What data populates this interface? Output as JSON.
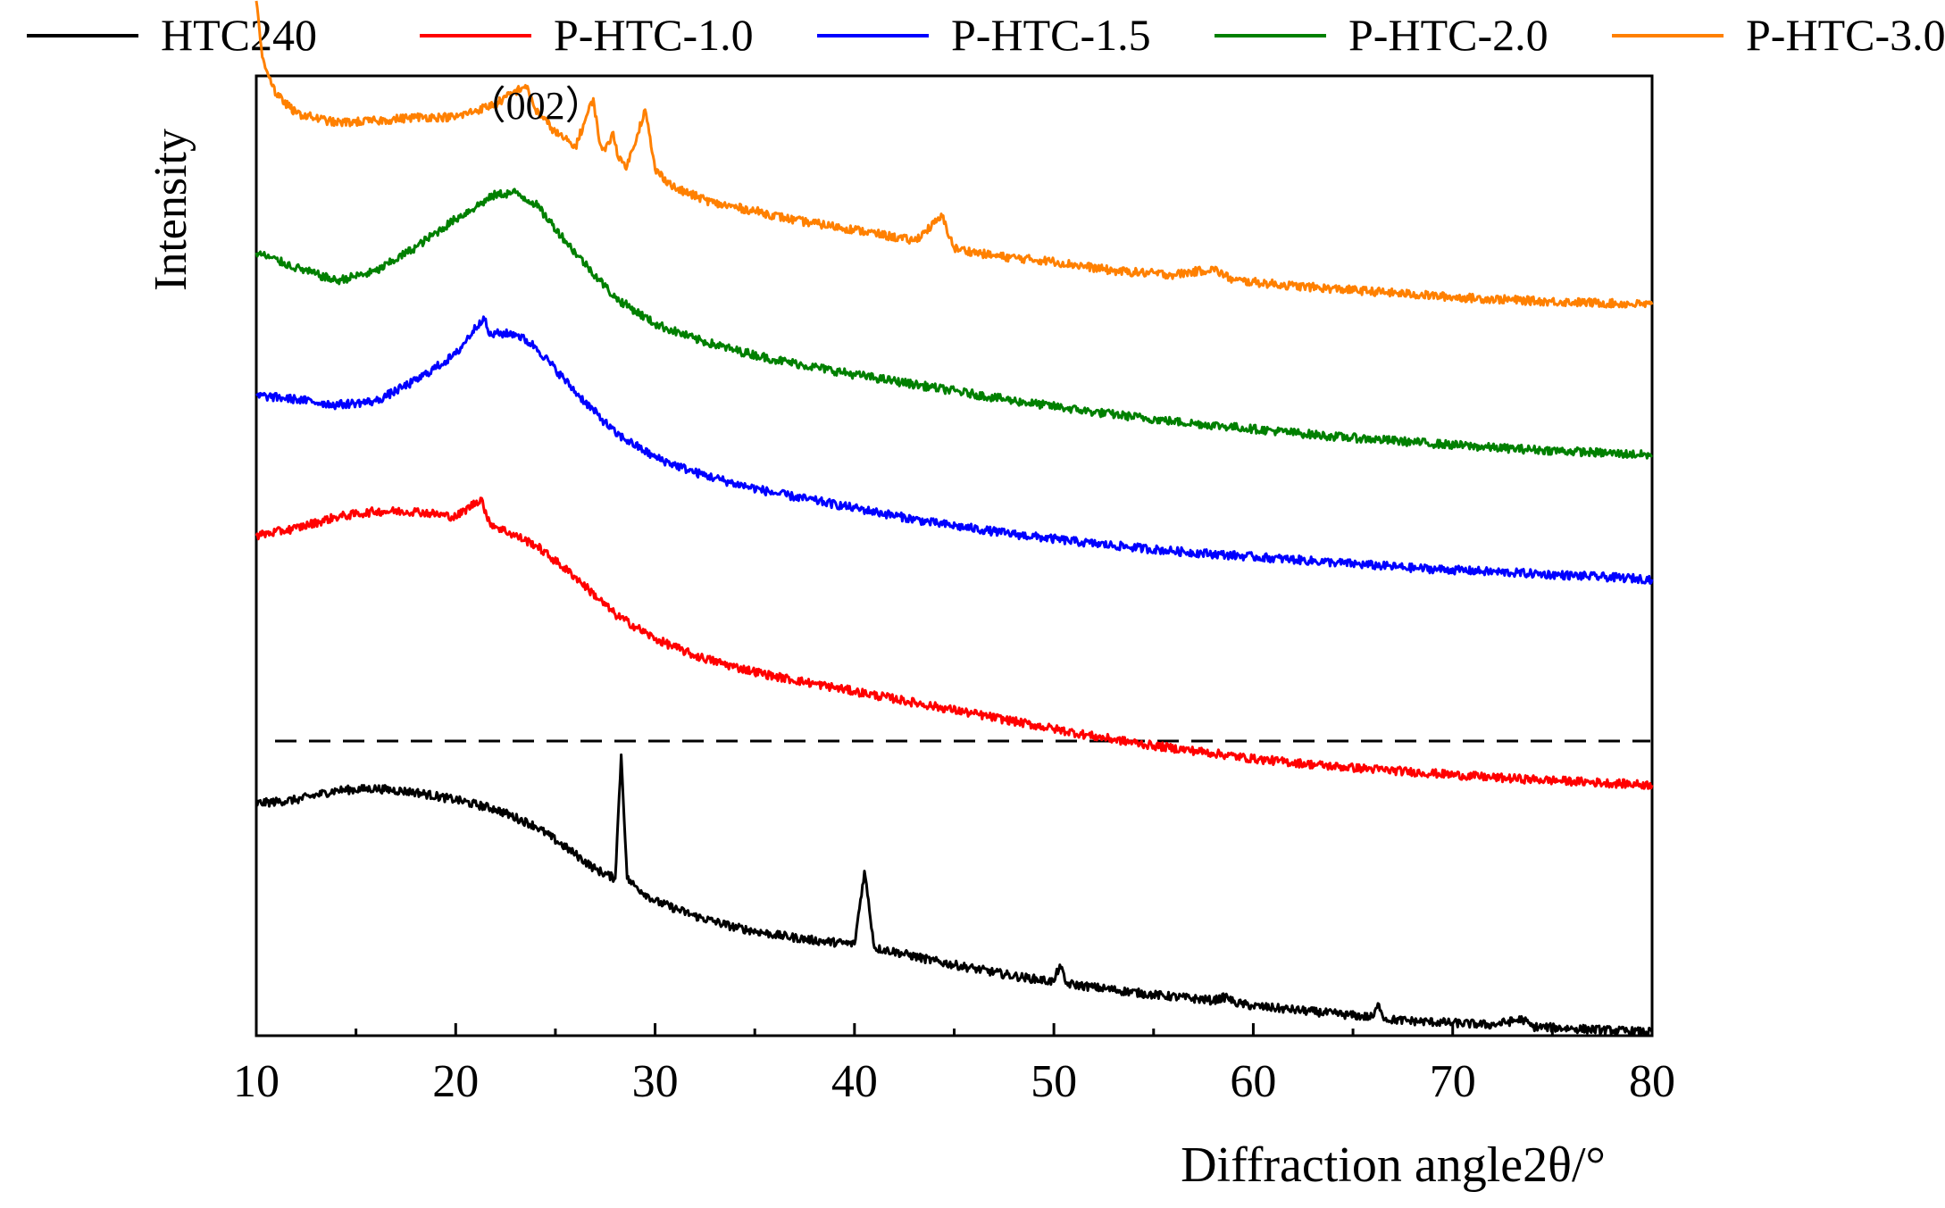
{
  "chart_data": {
    "type": "line",
    "title": "",
    "xlabel": "Diffraction angle2θ/°",
    "ylabel": "Intensity",
    "xlim": [
      10,
      80
    ],
    "xticks": [
      10,
      20,
      30,
      40,
      50,
      60,
      70,
      80
    ],
    "y_ticks_shown": false,
    "grid": false,
    "legend_position": "top, above plot, horizontal",
    "annotation": "（002）",
    "annotation_x": 24,
    "dashed_separator": true,
    "series": [
      {
        "name": "HTC240",
        "color": "#000000",
        "x": [
          10,
          12,
          14,
          16,
          18,
          20,
          22,
          24,
          26,
          27,
          28,
          28.3,
          28.6,
          29,
          30,
          32,
          34,
          36,
          38,
          40,
          40.5,
          41,
          42,
          44,
          46,
          48,
          50,
          50.3,
          50.6,
          52,
          55,
          58,
          58.7,
          59,
          60,
          62,
          64,
          66,
          66.3,
          66.6,
          68,
          70,
          72,
          73.5,
          74,
          76,
          78,
          80
        ],
        "values": [
          0.0,
          0.02,
          0.07,
          0.08,
          0.06,
          0.02,
          -0.03,
          -0.12,
          -0.27,
          -0.35,
          -0.4,
          0.26,
          -0.4,
          -0.44,
          -0.52,
          -0.6,
          -0.66,
          -0.7,
          -0.73,
          -0.75,
          -0.36,
          -0.77,
          -0.79,
          -0.84,
          -0.88,
          -0.92,
          -0.95,
          -0.86,
          -0.96,
          -0.98,
          -1.02,
          -1.05,
          -1.03,
          -1.06,
          -1.08,
          -1.1,
          -1.12,
          -1.14,
          -1.07,
          -1.15,
          -1.16,
          -1.17,
          -1.18,
          -1.15,
          -1.19,
          -1.2,
          -1.21,
          -1.22
        ]
      },
      {
        "name": "P-HTC-1.0",
        "color": "#ff0000",
        "x": [
          10,
          12,
          14,
          16,
          18,
          20,
          21.3,
          21.6,
          22,
          24,
          26,
          28,
          30,
          32,
          34,
          36,
          38,
          40,
          42,
          44,
          46,
          48,
          50,
          52,
          55,
          58,
          60,
          64,
          68,
          72,
          76,
          80
        ],
        "values": [
          0.0,
          0.04,
          0.1,
          0.13,
          0.13,
          0.1,
          0.2,
          0.08,
          0.05,
          -0.05,
          -0.22,
          -0.42,
          -0.55,
          -0.64,
          -0.7,
          -0.75,
          -0.79,
          -0.83,
          -0.87,
          -0.91,
          -0.95,
          -0.99,
          -1.03,
          -1.07,
          -1.12,
          -1.16,
          -1.19,
          -1.23,
          -1.26,
          -1.29,
          -1.31,
          -1.33
        ]
      },
      {
        "name": "P-HTC-1.5",
        "color": "#0000ff",
        "x": [
          10,
          12,
          14,
          16,
          18,
          20,
          21.4,
          21.7,
          22,
          23,
          24,
          26,
          28,
          30,
          32,
          34,
          36,
          38,
          40,
          44,
          48,
          52,
          56,
          60,
          64,
          68,
          72,
          76,
          80
        ],
        "values": [
          0.0,
          -0.02,
          -0.05,
          -0.03,
          0.08,
          0.22,
          0.42,
          0.32,
          0.33,
          0.33,
          0.26,
          0.02,
          -0.2,
          -0.33,
          -0.41,
          -0.47,
          -0.52,
          -0.56,
          -0.6,
          -0.68,
          -0.74,
          -0.79,
          -0.83,
          -0.86,
          -0.89,
          -0.92,
          -0.94,
          -0.96,
          -0.98
        ]
      },
      {
        "name": "P-HTC-2.0",
        "color": "#008000",
        "x": [
          10,
          12,
          14,
          16,
          18,
          20,
          22,
          23,
          24,
          26,
          28,
          30,
          32,
          34,
          36,
          38,
          40,
          44,
          48,
          52,
          56,
          60,
          64,
          68,
          72,
          76,
          80
        ],
        "values": [
          0.0,
          -0.08,
          -0.15,
          -0.1,
          0.03,
          0.18,
          0.31,
          0.32,
          0.26,
          0.0,
          -0.24,
          -0.38,
          -0.46,
          -0.52,
          -0.57,
          -0.61,
          -0.65,
          -0.72,
          -0.79,
          -0.85,
          -0.9,
          -0.94,
          -0.98,
          -1.01,
          -1.04,
          -1.06,
          -1.08
        ]
      },
      {
        "name": "P-HTC-3.0",
        "color": "#ff8000",
        "x": [
          10,
          10.3,
          11,
          12,
          14,
          16,
          18,
          20,
          22,
          23.5,
          24,
          25,
          26,
          26.9,
          27.2,
          27.5,
          27.9,
          28.2,
          28.6,
          29.5,
          30,
          31,
          33,
          35,
          37,
          40,
          43,
          44.4,
          45,
          47,
          50,
          53,
          56,
          58,
          59,
          62,
          66,
          70,
          74,
          80
        ],
        "values": [
          0.6,
          0.3,
          0.1,
          0.0,
          -0.05,
          -0.04,
          -0.02,
          -0.02,
          0.05,
          0.15,
          0.02,
          -0.1,
          -0.18,
          0.08,
          -0.15,
          -0.2,
          -0.1,
          -0.25,
          -0.28,
          0.02,
          -0.3,
          -0.4,
          -0.48,
          -0.52,
          -0.57,
          -0.62,
          -0.68,
          -0.55,
          -0.72,
          -0.76,
          -0.79,
          -0.84,
          -0.86,
          -0.83,
          -0.89,
          -0.92,
          -0.95,
          -0.98,
          -1.0,
          -1.02
        ]
      }
    ]
  }
}
